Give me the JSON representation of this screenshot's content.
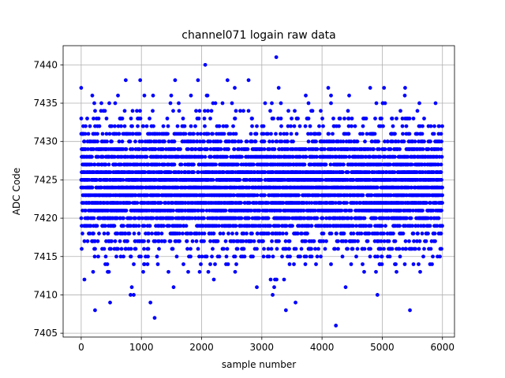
{
  "chart_data": {
    "type": "scatter",
    "title": "channel071 logain raw data",
    "xlabel": "sample number",
    "ylabel": "ADC Code",
    "xlim": [
      -300,
      6200
    ],
    "ylim": [
      7404.5,
      7442.5
    ],
    "xticks": [
      0,
      1000,
      2000,
      3000,
      4000,
      5000,
      6000
    ],
    "yticks": [
      7405,
      7410,
      7415,
      7420,
      7425,
      7430,
      7435,
      7440
    ],
    "grid": true,
    "marker_color": "#0000ff",
    "sample_count": 6000,
    "band": {
      "dense_min": 7416,
      "dense_max": 7432,
      "sparse_min": 7411,
      "sparse_max": 7436
    },
    "outliers": [
      {
        "x": 2060,
        "y": 7440
      },
      {
        "x": 3240,
        "y": 7441
      },
      {
        "x": 4230,
        "y": 7406
      },
      {
        "x": 1220,
        "y": 7407
      },
      {
        "x": 230,
        "y": 7408
      },
      {
        "x": 3400,
        "y": 7408
      },
      {
        "x": 5460,
        "y": 7408
      },
      {
        "x": 480,
        "y": 7409
      },
      {
        "x": 1150,
        "y": 7409
      },
      {
        "x": 3560,
        "y": 7409
      },
      {
        "x": 820,
        "y": 7410
      },
      {
        "x": 3180,
        "y": 7410
      },
      {
        "x": 4920,
        "y": 7410
      },
      {
        "x": 0,
        "y": 7437
      },
      {
        "x": 740,
        "y": 7438
      },
      {
        "x": 980,
        "y": 7438
      },
      {
        "x": 1560,
        "y": 7438
      },
      {
        "x": 1940,
        "y": 7438
      },
      {
        "x": 2430,
        "y": 7438
      },
      {
        "x": 2780,
        "y": 7438
      },
      {
        "x": 4800,
        "y": 7437
      },
      {
        "x": 5030,
        "y": 7437
      },
      {
        "x": 5380,
        "y": 7437
      },
      {
        "x": 3280,
        "y": 7437
      }
    ]
  }
}
